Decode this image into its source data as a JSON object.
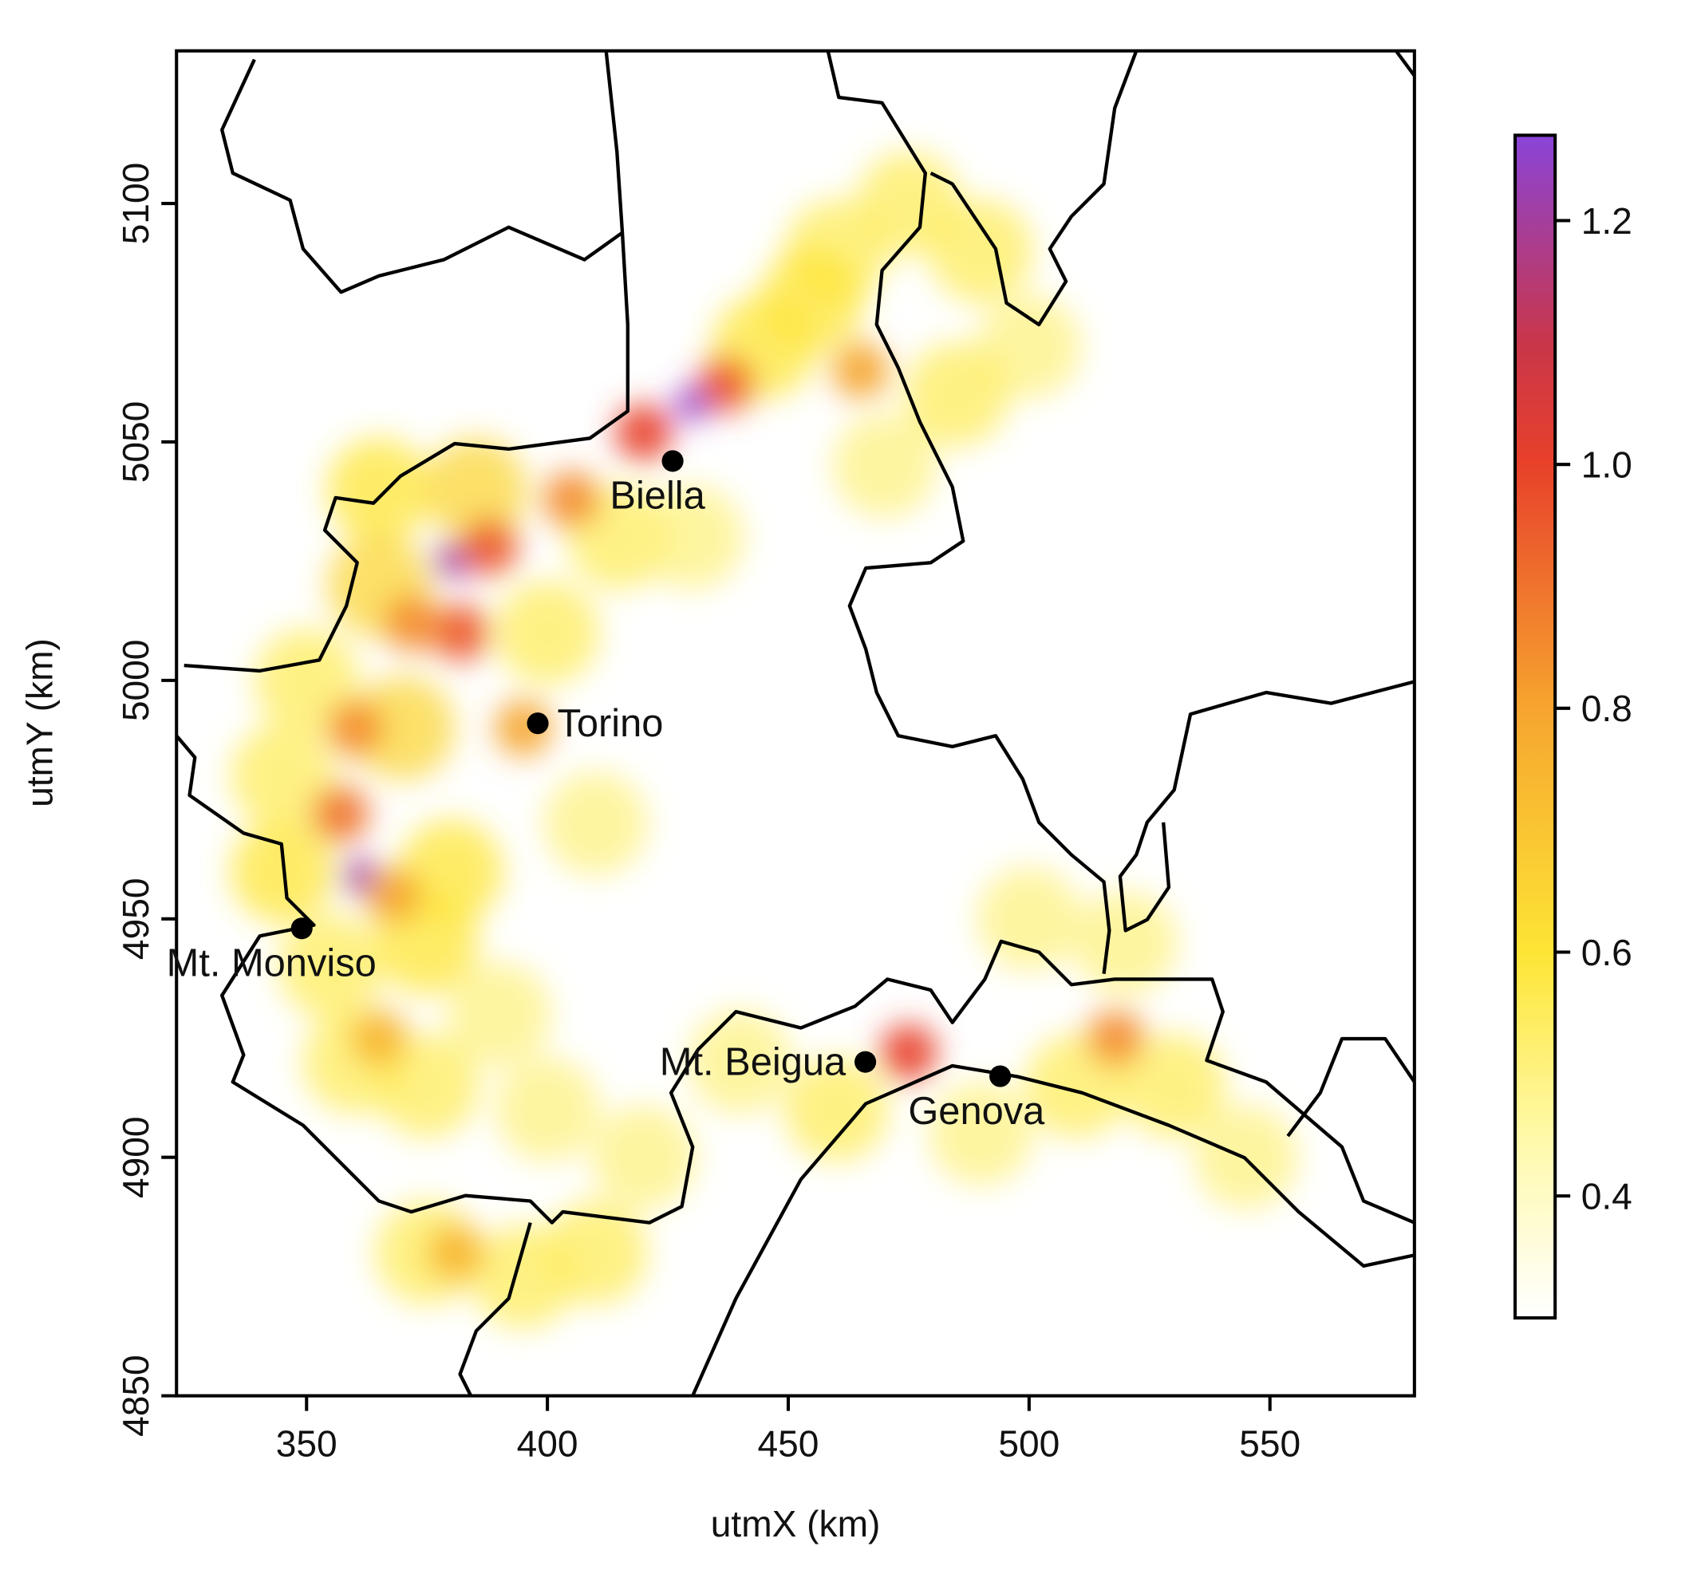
{
  "chart_data": {
    "type": "heatmap",
    "xlabel": "utmX (km)",
    "ylabel": "utmY (km)",
    "xlim": [
      323,
      580
    ],
    "ylim": [
      4850,
      5132
    ],
    "xticks": [
      350,
      400,
      450,
      500,
      550
    ],
    "yticks": [
      4850,
      4900,
      4950,
      5000,
      5050,
      5100
    ],
    "colorbar": {
      "lim": [
        0.3,
        1.27
      ],
      "ticks": [
        0.4,
        0.6,
        0.8,
        {
          "value": 1.0,
          "label": "1.0"
        },
        1.2
      ],
      "colorscale": [
        [
          0.3,
          "#ffffff"
        ],
        [
          0.45,
          "#fff9a8"
        ],
        [
          0.6,
          "#fde535"
        ],
        [
          0.8,
          "#f6a52f"
        ],
        [
          1.0,
          "#e8412a"
        ],
        [
          1.1,
          "#c9364a"
        ],
        [
          1.27,
          "#8a44d8"
        ]
      ]
    },
    "points": [
      {
        "name": "Biella",
        "x": 426,
        "y": 5046
      },
      {
        "name": "Torino",
        "x": 398,
        "y": 4991
      },
      {
        "name": "Mt. Monviso",
        "x": 349,
        "y": 4948
      },
      {
        "name": "Mt. Beigua",
        "x": 466,
        "y": 4920
      },
      {
        "name": "Genova",
        "x": 494,
        "y": 4917
      }
    ],
    "field": [
      {
        "x": 350,
        "y": 5000,
        "value": 0.55
      },
      {
        "x": 345,
        "y": 4980,
        "value": 0.55
      },
      {
        "x": 355,
        "y": 4940,
        "value": 0.55
      },
      {
        "x": 360,
        "y": 4920,
        "value": 0.55
      },
      {
        "x": 375,
        "y": 4915,
        "value": 0.55
      },
      {
        "x": 390,
        "y": 4930,
        "value": 0.5
      },
      {
        "x": 400,
        "y": 4910,
        "value": 0.5
      },
      {
        "x": 420,
        "y": 4900,
        "value": 0.5
      },
      {
        "x": 410,
        "y": 4880,
        "value": 0.55
      },
      {
        "x": 395,
        "y": 4875,
        "value": 0.55
      },
      {
        "x": 375,
        "y": 4880,
        "value": 0.55
      },
      {
        "x": 415,
        "y": 5030,
        "value": 0.55
      },
      {
        "x": 430,
        "y": 5030,
        "value": 0.5
      },
      {
        "x": 445,
        "y": 5070,
        "value": 0.6
      },
      {
        "x": 460,
        "y": 5090,
        "value": 0.55
      },
      {
        "x": 475,
        "y": 5100,
        "value": 0.55
      },
      {
        "x": 490,
        "y": 5090,
        "value": 0.55
      },
      {
        "x": 500,
        "y": 5070,
        "value": 0.5
      },
      {
        "x": 485,
        "y": 5060,
        "value": 0.55
      },
      {
        "x": 470,
        "y": 5045,
        "value": 0.5
      },
      {
        "x": 455,
        "y": 5080,
        "value": 0.6
      },
      {
        "x": 365,
        "y": 5040,
        "value": 0.6
      },
      {
        "x": 400,
        "y": 5010,
        "value": 0.55
      },
      {
        "x": 410,
        "y": 4970,
        "value": 0.5
      },
      {
        "x": 380,
        "y": 4960,
        "value": 0.6
      },
      {
        "x": 440,
        "y": 4920,
        "value": 0.5
      },
      {
        "x": 460,
        "y": 4910,
        "value": 0.55
      },
      {
        "x": 490,
        "y": 4905,
        "value": 0.5
      },
      {
        "x": 510,
        "y": 4915,
        "value": 0.55
      },
      {
        "x": 530,
        "y": 4915,
        "value": 0.55
      },
      {
        "x": 545,
        "y": 4900,
        "value": 0.5
      },
      {
        "x": 500,
        "y": 4950,
        "value": 0.5
      },
      {
        "x": 520,
        "y": 4945,
        "value": 0.5
      },
      {
        "x": 375,
        "y": 4945,
        "value": 0.6
      },
      {
        "x": 345,
        "y": 4960,
        "value": 0.6
      },
      {
        "x": 370,
        "y": 4990,
        "value": 0.65
      },
      {
        "x": 385,
        "y": 5040,
        "value": 0.65
      },
      {
        "x": 365,
        "y": 5020,
        "value": 0.65
      },
      {
        "x": 437,
        "y": 5062,
        "value": 0.95
      },
      {
        "x": 420,
        "y": 5052,
        "value": 1.0
      },
      {
        "x": 405,
        "y": 5038,
        "value": 0.85
      },
      {
        "x": 388,
        "y": 5028,
        "value": 0.95
      },
      {
        "x": 382,
        "y": 5010,
        "value": 0.95
      },
      {
        "x": 372,
        "y": 5012,
        "value": 0.85
      },
      {
        "x": 360,
        "y": 4990,
        "value": 0.85
      },
      {
        "x": 357,
        "y": 4972,
        "value": 0.9
      },
      {
        "x": 368,
        "y": 4955,
        "value": 0.8
      },
      {
        "x": 395,
        "y": 4990,
        "value": 0.8
      },
      {
        "x": 518,
        "y": 4925,
        "value": 0.85
      },
      {
        "x": 465,
        "y": 5065,
        "value": 0.8
      },
      {
        "x": 365,
        "y": 4925,
        "value": 0.75
      },
      {
        "x": 381,
        "y": 4880,
        "value": 0.75
      },
      {
        "x": 475,
        "y": 4922,
        "value": 1.0
      },
      {
        "x": 430,
        "y": 5058,
        "value": 1.25
      },
      {
        "x": 380,
        "y": 5025,
        "value": 1.2
      },
      {
        "x": 361,
        "y": 4959,
        "value": 1.2
      }
    ]
  }
}
